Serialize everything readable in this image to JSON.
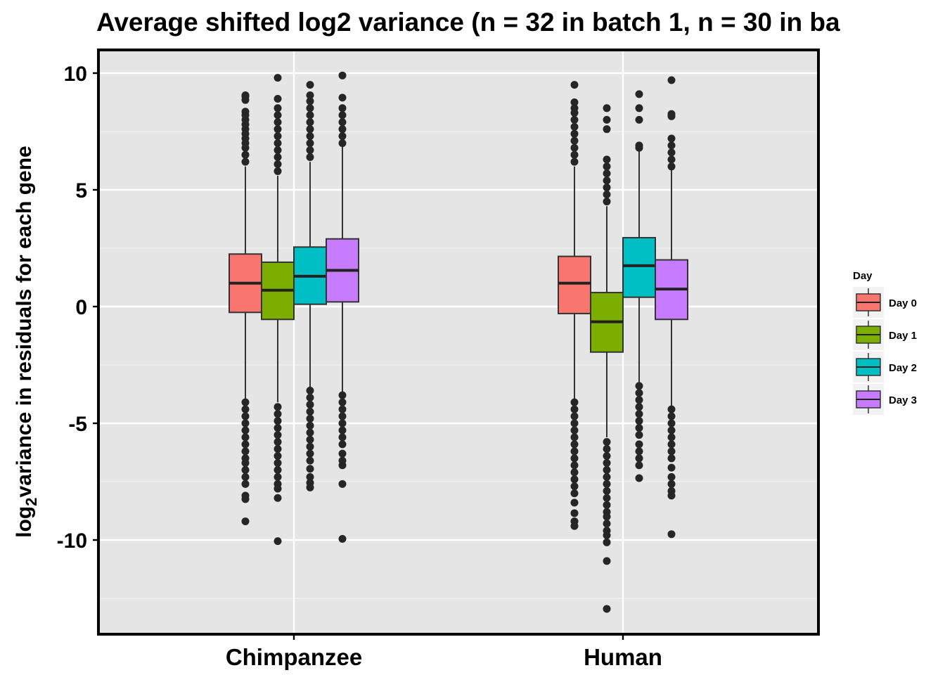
{
  "chart_data": {
    "type": "box",
    "title": "Average shifted log2 variance (n = 32 in batch 1, n = 30 in ba",
    "xlabel": "",
    "ylabel": "variance in residuals for each gene",
    "ylabel_prefix": "log",
    "ylabel_subscript": "2",
    "ylim": [
      -13.9,
      11.0
    ],
    "yticks": [
      10,
      5,
      0,
      -5,
      -10
    ],
    "ytick_labels": [
      "10",
      "5",
      "0",
      "-5",
      "-10"
    ],
    "categories": [
      "Chimpanzee",
      "Human"
    ],
    "grid": true,
    "legend_position": "right",
    "legend_title": "Day",
    "series": [
      {
        "name": "Day 0",
        "color": "#F8766D",
        "boxes": [
          {
            "q1": -0.25,
            "median": 1.0,
            "q3": 2.25,
            "whisker_low": -4.0,
            "whisker_high": 6.0,
            "outliers_high": [
              6.2,
              6.5,
              6.8,
              7.0,
              7.2,
              7.4,
              7.6,
              7.8,
              8.0,
              8.2,
              8.35,
              8.85,
              9.0,
              9.05
            ],
            "outliers_low": [
              -4.1,
              -4.4,
              -4.7,
              -5.0,
              -5.3,
              -5.6,
              -5.9,
              -6.2,
              -6.5,
              -6.7,
              -7.0,
              -7.3,
              -7.6,
              -8.1,
              -8.25,
              -9.2
            ]
          },
          {
            "q1": -0.3,
            "median": 1.0,
            "q3": 2.15,
            "whisker_low": -4.0,
            "whisker_high": 6.0,
            "outliers_high": [
              6.2,
              6.5,
              6.8,
              7.1,
              7.4,
              7.7,
              8.0,
              8.3,
              8.5,
              8.75,
              9.5
            ],
            "outliers_low": [
              -4.1,
              -4.4,
              -4.7,
              -5.0,
              -5.3,
              -5.6,
              -5.9,
              -6.2,
              -6.5,
              -6.8,
              -7.1,
              -7.4,
              -7.7,
              -8.0,
              -8.4,
              -8.85,
              -9.2,
              -9.4
            ]
          }
        ]
      },
      {
        "name": "Day 1",
        "color": "#7CAE00",
        "boxes": [
          {
            "q1": -0.55,
            "median": 0.7,
            "q3": 1.9,
            "whisker_low": -4.1,
            "whisker_high": 5.6,
            "outliers_high": [
              5.8,
              6.1,
              6.4,
              6.7,
              7.0,
              7.3,
              7.6,
              7.9,
              8.2,
              8.5,
              8.9,
              9.8
            ],
            "outliers_low": [
              -4.3,
              -4.6,
              -4.9,
              -5.2,
              -5.5,
              -5.8,
              -6.1,
              -6.4,
              -6.7,
              -7.0,
              -7.3,
              -7.6,
              -7.8,
              -8.2,
              -10.05
            ]
          },
          {
            "q1": -1.95,
            "median": -0.65,
            "q3": 0.6,
            "whisker_low": -5.6,
            "whisker_high": 4.3,
            "outliers_high": [
              4.5,
              4.8,
              5.1,
              5.4,
              5.7,
              6.0,
              6.3,
              7.6,
              8.0,
              8.5
            ],
            "outliers_low": [
              -5.8,
              -6.1,
              -6.4,
              -6.7,
              -7.0,
              -7.3,
              -7.6,
              -7.9,
              -8.2,
              -8.5,
              -8.8,
              -9.0,
              -9.3,
              -9.6,
              -9.8,
              -10.1,
              -10.9,
              -12.95
            ]
          }
        ]
      },
      {
        "name": "Day 2",
        "color": "#00BFC4",
        "boxes": [
          {
            "q1": 0.1,
            "median": 1.3,
            "q3": 2.55,
            "whisker_low": -3.5,
            "whisker_high": 6.2,
            "outliers_high": [
              6.4,
              6.7,
              7.0,
              7.3,
              7.6,
              7.9,
              8.2,
              8.5,
              8.8,
              9.05,
              9.5
            ],
            "outliers_low": [
              -3.6,
              -3.9,
              -4.2,
              -4.5,
              -4.8,
              -5.1,
              -5.4,
              -5.7,
              -6.0,
              -6.3,
              -6.6,
              -6.95,
              -7.3,
              -7.55,
              -7.75
            ]
          },
          {
            "q1": 0.4,
            "median": 1.75,
            "q3": 2.95,
            "whisker_low": -3.3,
            "whisker_high": 6.7,
            "outliers_high": [
              6.8,
              6.9,
              8.0,
              8.5,
              9.1
            ],
            "outliers_low": [
              -3.4,
              -3.7,
              -4.0,
              -4.3,
              -4.6,
              -4.9,
              -5.2,
              -5.5,
              -5.9,
              -6.2,
              -6.5,
              -6.8,
              -7.35
            ]
          }
        ]
      },
      {
        "name": "Day 3",
        "color": "#C77CFF",
        "boxes": [
          {
            "q1": 0.2,
            "median": 1.55,
            "q3": 2.9,
            "whisker_low": -3.7,
            "whisker_high": 6.9,
            "outliers_high": [
              7.0,
              7.3,
              7.6,
              7.9,
              8.2,
              8.5,
              8.95,
              9.9
            ],
            "outliers_low": [
              -3.8,
              -4.1,
              -4.4,
              -4.7,
              -5.0,
              -5.3,
              -5.6,
              -5.9,
              -6.3,
              -6.6,
              -6.8,
              -7.6,
              -9.95
            ]
          },
          {
            "q1": -0.55,
            "median": 0.75,
            "q3": 2.0,
            "whisker_low": -4.3,
            "whisker_high": 5.9,
            "outliers_high": [
              6.0,
              6.3,
              6.6,
              6.9,
              7.2,
              8.15,
              8.25,
              9.7
            ],
            "outliers_low": [
              -4.4,
              -4.7,
              -5.0,
              -5.3,
              -5.6,
              -5.9,
              -6.2,
              -6.5,
              -6.9,
              -7.3,
              -7.6,
              -7.9,
              -8.1,
              -9.75
            ]
          }
        ]
      }
    ]
  }
}
